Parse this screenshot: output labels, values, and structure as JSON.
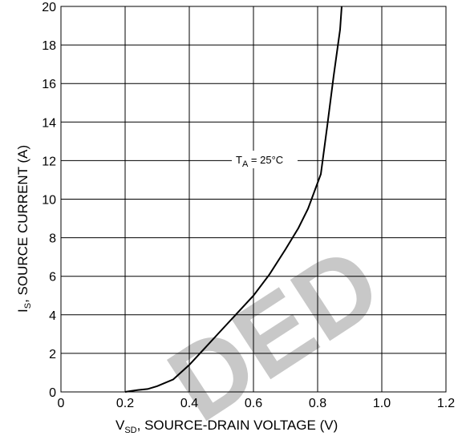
{
  "chart_data": {
    "type": "line",
    "title": "",
    "xlabel": {
      "main": "V",
      "sub": "SD",
      "rest": ", SOURCE-DRAIN VOLTAGE (V)"
    },
    "ylabel": {
      "main": "I",
      "sub": "S",
      "rest": ", SOURCE CURRENT (A)"
    },
    "xlim": [
      0,
      1.2
    ],
    "ylim": [
      0,
      20
    ],
    "xticks": [
      0,
      0.2,
      0.4,
      0.6,
      0.8,
      1.0,
      1.2
    ],
    "xtick_labels": [
      "0",
      "0.2",
      "0.4",
      "0.6",
      "0.8",
      "1.0",
      "1.2"
    ],
    "yticks": [
      0,
      2,
      4,
      6,
      8,
      10,
      12,
      14,
      16,
      18,
      20
    ],
    "ytick_labels": [
      "0",
      "2",
      "4",
      "6",
      "8",
      "10",
      "12",
      "14",
      "16",
      "18",
      "20"
    ],
    "grid": true,
    "annotation": {
      "main": "T",
      "sub": "A",
      "rest": " = 25°C"
    },
    "series": [
      {
        "x": [
          0.2,
          0.22,
          0.24,
          0.27,
          0.3,
          0.35,
          0.4,
          0.45,
          0.5,
          0.55,
          0.6,
          0.65,
          0.7,
          0.74,
          0.77,
          0.79,
          0.81,
          0.83,
          0.85,
          0.87,
          0.875
        ],
        "y": [
          0,
          0.05,
          0.1,
          0.15,
          0.3,
          0.65,
          1.4,
          2.3,
          3.2,
          4.1,
          5.0,
          6.1,
          7.4,
          8.5,
          9.5,
          10.4,
          11.3,
          13.8,
          16.4,
          18.8,
          20
        ]
      }
    ],
    "watermark": "DED"
  }
}
